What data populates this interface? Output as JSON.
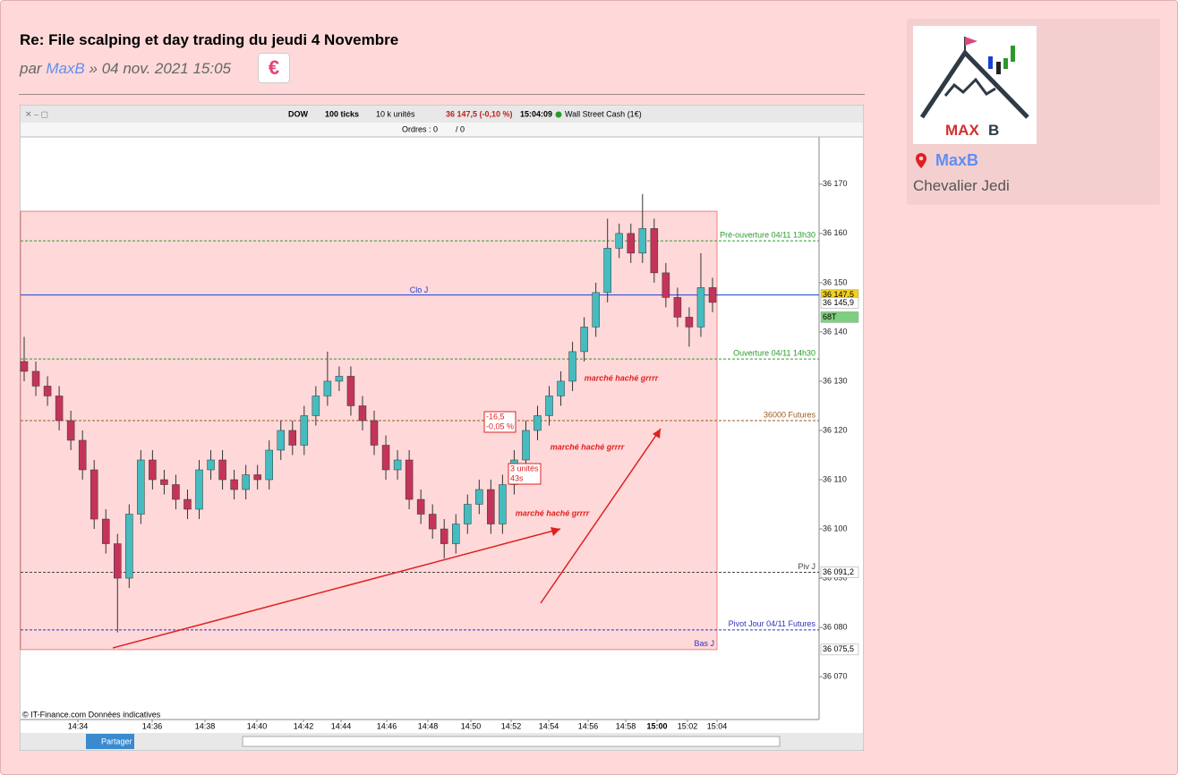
{
  "post": {
    "title": "Re: File scalping et day trading du jeudi 4 Novembre",
    "by": "par",
    "author": "MaxB",
    "date": "» 04 nov. 2021 15:05",
    "currency_icon": "€"
  },
  "profile": {
    "avatar_text_1": "MAX",
    "avatar_text_2": "B",
    "name": "MaxB",
    "rank": "Chevalier Jedi"
  },
  "chart_data": {
    "type": "candlestick",
    "toolbar": {
      "symbol": "DOW",
      "ticks": "100 ticks",
      "units": "10 k unités",
      "quote": "36 147,5 (-0,10 %)",
      "time": "15:04:09",
      "instrument": "Wall Street Cash (1€)",
      "orders": "Ordres : 0",
      "orders2": "/ 0",
      "share": "Partager"
    },
    "credit": "© IT-Finance.com Données indicatives",
    "up_color": "#45bcc0",
    "down_color": "#c4345a",
    "ylim": [
      36061.3,
      36179.6
    ],
    "yticks": [
      {
        "value": 36170,
        "label": "36 170"
      },
      {
        "value": 36160,
        "label": "36 160"
      },
      {
        "value": 36150,
        "label": "36 150"
      },
      {
        "value": 36140,
        "label": "36 140"
      },
      {
        "value": 36130,
        "label": "36 130"
      },
      {
        "value": 36120,
        "label": "36 120"
      },
      {
        "value": 36110,
        "label": "36 110"
      },
      {
        "value": 36100,
        "label": "36 100"
      },
      {
        "value": 36090,
        "label": "36 090"
      },
      {
        "value": 36080,
        "label": "36 080"
      },
      {
        "value": 36070,
        "label": "36 070"
      }
    ],
    "xticks": [
      "14:34",
      "14:36",
      "14:38",
      "14:40",
      "14:42",
      "14:44",
      "14:46",
      "14:48",
      "14:50",
      "14:52",
      "14:54",
      "14:56",
      "14:58",
      "15:00",
      "15:02",
      "15:04"
    ],
    "open": [
      36134,
      36132,
      36129,
      36127,
      36122,
      36118,
      36112,
      36102,
      36097,
      36090,
      36103,
      36114,
      36110,
      36109,
      36106,
      36104,
      36112,
      36114,
      36110,
      36108,
      36111,
      36110,
      36116,
      36120,
      36117,
      36123,
      36127,
      36130,
      36131,
      36125,
      36122,
      36117,
      36112,
      36114,
      36106,
      36103,
      36100,
      36097,
      36101,
      36105,
      36108,
      36101,
      36109,
      36114,
      36120,
      36123,
      36127,
      36130,
      36136,
      36141,
      36148,
      36157,
      36160,
      36156,
      36161,
      36152,
      36147,
      36143,
      36141,
      36149
    ],
    "high": [
      36139,
      36134,
      36131,
      36129,
      36124,
      36120,
      36114,
      36104,
      36099,
      36105,
      36116,
      36116,
      36112,
      36111,
      36108,
      36114,
      36116,
      36116,
      36112,
      36113,
      36113,
      36118,
      36122,
      36122,
      36125,
      36129,
      36136,
      36133,
      36133,
      36127,
      36124,
      36119,
      36116,
      36116,
      36108,
      36105,
      36102,
      36103,
      36107,
      36110,
      36110,
      36111,
      36116,
      36122,
      36125,
      36129,
      36132,
      36138,
      36143,
      36150,
      36163,
      36162,
      36162,
      36168,
      36163,
      36154,
      36149,
      36145,
      36156,
      36151
    ],
    "low": [
      36130,
      36127,
      36125,
      36120,
      36116,
      36110,
      36100,
      36095,
      36079,
      36088,
      36101,
      36108,
      36107,
      36104,
      36102,
      36102,
      36110,
      36108,
      36106,
      36106,
      36108,
      36108,
      36114,
      36115,
      36115,
      36121,
      36125,
      36128,
      36123,
      36120,
      36115,
      36110,
      36110,
      36104,
      36101,
      36098,
      36094,
      36095,
      36099,
      36103,
      36099,
      36099,
      36107,
      36112,
      36118,
      36121,
      36125,
      36128,
      36134,
      36139,
      36146,
      36155,
      36154,
      36154,
      36150,
      36145,
      36141,
      36137,
      36139,
      36144
    ],
    "close": [
      36132,
      36129,
      36127,
      36122,
      36118,
      36112,
      36102,
      36097,
      36090,
      36103,
      36114,
      36110,
      36109,
      36106,
      36104,
      36112,
      36114,
      36110,
      36108,
      36111,
      36110,
      36116,
      36120,
      36117,
      36123,
      36127,
      36130,
      36131,
      36125,
      36122,
      36117,
      36112,
      36114,
      36106,
      36103,
      36100,
      36097,
      36101,
      36105,
      36108,
      36101,
      36109,
      36114,
      36120,
      36123,
      36127,
      36130,
      36136,
      36141,
      36148,
      36157,
      36160,
      36156,
      36161,
      36152,
      36147,
      36143,
      36141,
      36149,
      36146
    ],
    "zone": {
      "top": 36164.5,
      "bottom": 36075.5,
      "color": "#ffd9d9",
      "edge": "#f08080"
    },
    "levels": [
      {
        "label": "Pré-ouverture 04/11 13h30",
        "value": 36158.5,
        "color": "#2a9a2a",
        "dash": true
      },
      {
        "label": "Clo J",
        "value": 36147.5,
        "color": "#1a3fd6",
        "dash": false
      },
      {
        "label": "Ouverture 04/11 14h30",
        "value": 36134.5,
        "color": "#2a9a2a",
        "dash": true
      },
      {
        "label": "36000 Futures",
        "value": 36122,
        "color": "#9a5a20",
        "dash": true
      },
      {
        "label": "Piv J",
        "value": 36091.2,
        "color": "#444444",
        "dash": true
      },
      {
        "label": "Pivot Jour 04/11 Futures",
        "value": 36079.5,
        "color": "#3030c0",
        "dash": true
      },
      {
        "label": "Bas J",
        "value": 36075.5,
        "color": "#3030c0",
        "dash": false
      }
    ],
    "tags": [
      {
        "label": "36 147,5",
        "value": 36147.5,
        "bg": "#f0d020"
      },
      {
        "label": "36 145,9",
        "value": 36145.9,
        "bg": "#ffffff"
      },
      {
        "label": "68T",
        "value": 36143,
        "bg": "#7ed07e"
      },
      {
        "label": "36 091,2",
        "value": 36091.2,
        "bg": "#ffffff"
      },
      {
        "label": "36 075,5",
        "value": 36075.5,
        "bg": "#ffffff"
      }
    ],
    "annotations": [
      "marché haché grrrr",
      "marché haché grrrr",
      "marché haché grrrr"
    ],
    "box1": [
      "-16,5",
      "-0,05 %"
    ],
    "box2": [
      "3 unités",
      "43s"
    ]
  }
}
